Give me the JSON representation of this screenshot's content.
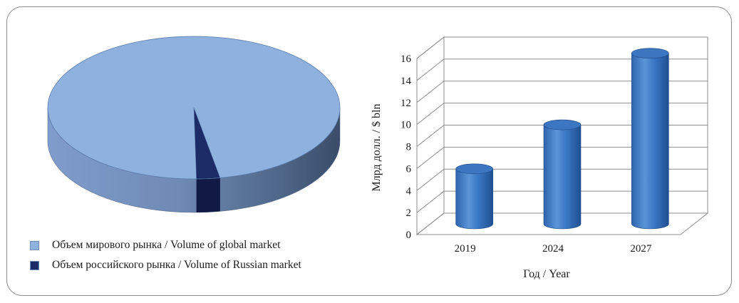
{
  "chart_data": [
    {
      "type": "pie",
      "title": "",
      "slices": [
        {
          "label": "Объем мирового рынка / Volume of global market",
          "value": 97.4,
          "color": "#8eb1de"
        },
        {
          "label": "Объем российского рынка / Volume of Russian market",
          "value": 2.6,
          "color": "#1c2a66"
        }
      ],
      "legend_position": "bottom-left"
    },
    {
      "type": "bar",
      "title": "",
      "categories": [
        "2019",
        "2024",
        "2027"
      ],
      "values": [
        5,
        9,
        15.5
      ],
      "xlabel": "Год / Year",
      "ylabel": "Млрд долл. / $ bln",
      "ylim": [
        0,
        16
      ],
      "yticks": [
        0,
        2,
        4,
        6,
        8,
        10,
        12,
        14,
        16
      ],
      "grid": true,
      "color": "#3f7cc8"
    }
  ]
}
